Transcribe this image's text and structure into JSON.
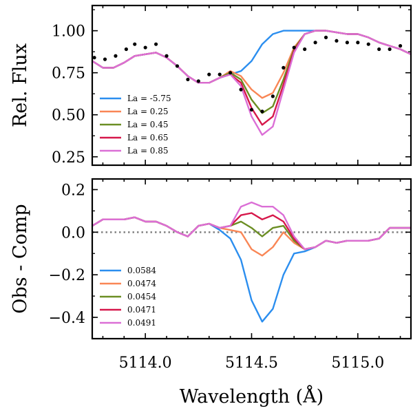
{
  "chart_data": [
    {
      "type": "line",
      "ylabel": "Rel. Flux",
      "xlim": [
        5113.75,
        5115.25
      ],
      "ylim": [
        0.2,
        1.15
      ],
      "yticks": [
        "0.25",
        "0.50",
        "0.75",
        "1.00"
      ],
      "legend_location": "lower-left",
      "x": [
        5113.75,
        5113.8,
        5113.85,
        5113.9,
        5113.95,
        5114.0,
        5114.05,
        5114.1,
        5114.15,
        5114.2,
        5114.25,
        5114.3,
        5114.35,
        5114.4,
        5114.45,
        5114.5,
        5114.55,
        5114.6,
        5114.65,
        5114.7,
        5114.75,
        5114.8,
        5114.85,
        5114.9,
        5114.95,
        5115.0,
        5115.05,
        5115.1,
        5115.15,
        5115.2,
        5115.25
      ],
      "series": [
        {
          "name": "La = -5.75",
          "color": "#2b8eef",
          "values": [
            0.82,
            0.78,
            0.78,
            0.81,
            0.85,
            0.86,
            0.87,
            0.84,
            0.79,
            0.73,
            0.69,
            0.69,
            0.72,
            0.74,
            0.76,
            0.82,
            0.92,
            0.98,
            1.0,
            1.0,
            1.0,
            1.0,
            1.0,
            0.99,
            0.98,
            0.98,
            0.96,
            0.93,
            0.91,
            0.89,
            0.86
          ]
        },
        {
          "name": "La = 0.25",
          "color": "#f98655",
          "values": [
            0.82,
            0.78,
            0.78,
            0.81,
            0.85,
            0.86,
            0.87,
            0.84,
            0.79,
            0.73,
            0.69,
            0.69,
            0.72,
            0.76,
            0.73,
            0.65,
            0.6,
            0.63,
            0.75,
            0.9,
            0.98,
            1.0,
            1.0,
            0.99,
            0.98,
            0.98,
            0.96,
            0.93,
            0.91,
            0.89,
            0.86
          ]
        },
        {
          "name": "La = 0.45",
          "color": "#6b8e23",
          "values": [
            0.82,
            0.78,
            0.78,
            0.81,
            0.85,
            0.86,
            0.87,
            0.84,
            0.79,
            0.73,
            0.69,
            0.69,
            0.72,
            0.75,
            0.71,
            0.59,
            0.51,
            0.55,
            0.71,
            0.89,
            0.98,
            1.0,
            1.0,
            0.99,
            0.98,
            0.98,
            0.96,
            0.93,
            0.91,
            0.89,
            0.86
          ]
        },
        {
          "name": "La = 0.65",
          "color": "#d6174a",
          "values": [
            0.82,
            0.78,
            0.78,
            0.81,
            0.85,
            0.86,
            0.87,
            0.84,
            0.79,
            0.73,
            0.69,
            0.69,
            0.72,
            0.74,
            0.69,
            0.54,
            0.44,
            0.49,
            0.68,
            0.88,
            0.98,
            1.0,
            1.0,
            0.99,
            0.98,
            0.98,
            0.96,
            0.93,
            0.91,
            0.89,
            0.86
          ]
        },
        {
          "name": "La = 0.85",
          "color": "#db6fd6",
          "values": [
            0.82,
            0.78,
            0.78,
            0.81,
            0.85,
            0.86,
            0.87,
            0.84,
            0.79,
            0.73,
            0.69,
            0.69,
            0.72,
            0.74,
            0.67,
            0.49,
            0.38,
            0.43,
            0.65,
            0.87,
            0.98,
            1.0,
            1.0,
            0.99,
            0.98,
            0.98,
            0.96,
            0.93,
            0.91,
            0.89,
            0.86
          ]
        }
      ],
      "observed": {
        "color": "#000000",
        "x": [
          5113.76,
          5113.81,
          5113.86,
          5113.91,
          5113.95,
          5114.0,
          5114.05,
          5114.1,
          5114.15,
          5114.2,
          5114.25,
          5114.3,
          5114.35,
          5114.4,
          5114.45,
          5114.5,
          5114.55,
          5114.6,
          5114.65,
          5114.7,
          5114.75,
          5114.8,
          5114.85,
          5114.9,
          5114.95,
          5115.0,
          5115.05,
          5115.1,
          5115.15,
          5115.2
        ],
        "y": [
          0.84,
          0.83,
          0.85,
          0.89,
          0.92,
          0.9,
          0.92,
          0.85,
          0.79,
          0.71,
          0.7,
          0.74,
          0.74,
          0.75,
          0.65,
          0.53,
          0.52,
          0.61,
          0.78,
          0.9,
          0.89,
          0.93,
          0.96,
          0.94,
          0.93,
          0.93,
          0.92,
          0.89,
          0.89,
          0.91
        ]
      }
    },
    {
      "type": "line",
      "xlabel": "Wavelength (Å)",
      "ylabel": "Obs - Comp",
      "xlim": [
        5113.75,
        5115.25
      ],
      "ylim": [
        -0.5,
        0.25
      ],
      "xticks": [
        "5114.0",
        "5114.5",
        "5115.0"
      ],
      "yticks": [
        "−0.4",
        "−0.2",
        "0.0",
        "0.2"
      ],
      "zero_line": 0,
      "legend_location": "lower-left",
      "x": [
        5113.75,
        5113.8,
        5113.85,
        5113.9,
        5113.95,
        5114.0,
        5114.05,
        5114.1,
        5114.15,
        5114.2,
        5114.25,
        5114.3,
        5114.35,
        5114.4,
        5114.45,
        5114.5,
        5114.55,
        5114.6,
        5114.65,
        5114.7,
        5114.75,
        5114.8,
        5114.85,
        5114.9,
        5114.95,
        5115.0,
        5115.05,
        5115.1,
        5115.15,
        5115.2,
        5115.25
      ],
      "series": [
        {
          "name": "0.0584",
          "color": "#2b8eef",
          "values": [
            0.03,
            0.06,
            0.06,
            0.06,
            0.07,
            0.05,
            0.05,
            0.03,
            0.0,
            -0.02,
            0.03,
            0.04,
            0.01,
            -0.03,
            -0.13,
            -0.32,
            -0.42,
            -0.36,
            -0.2,
            -0.1,
            -0.09,
            -0.07,
            -0.04,
            -0.05,
            -0.04,
            -0.04,
            -0.04,
            -0.03,
            0.02,
            0.02,
            0.02
          ]
        },
        {
          "name": "0.0474",
          "color": "#f98655",
          "values": [
            0.03,
            0.06,
            0.06,
            0.06,
            0.07,
            0.05,
            0.05,
            0.03,
            0.0,
            -0.02,
            0.03,
            0.04,
            0.02,
            0.01,
            0.0,
            -0.08,
            -0.11,
            -0.07,
            0.0,
            -0.05,
            -0.08,
            -0.07,
            -0.04,
            -0.05,
            -0.04,
            -0.04,
            -0.04,
            -0.03,
            0.02,
            0.02,
            0.02
          ]
        },
        {
          "name": "0.0454",
          "color": "#6b8e23",
          "values": [
            0.03,
            0.06,
            0.06,
            0.06,
            0.07,
            0.05,
            0.05,
            0.03,
            0.0,
            -0.02,
            0.03,
            0.04,
            0.02,
            0.03,
            0.05,
            0.02,
            -0.02,
            0.02,
            0.03,
            -0.04,
            -0.08,
            -0.07,
            -0.04,
            -0.05,
            -0.04,
            -0.04,
            -0.04,
            -0.03,
            0.02,
            0.02,
            0.02
          ]
        },
        {
          "name": "0.0471",
          "color": "#d6174a",
          "values": [
            0.03,
            0.06,
            0.06,
            0.06,
            0.07,
            0.05,
            0.05,
            0.03,
            0.0,
            -0.02,
            0.03,
            0.04,
            0.02,
            0.03,
            0.08,
            0.09,
            0.06,
            0.08,
            0.05,
            -0.03,
            -0.08,
            -0.07,
            -0.04,
            -0.05,
            -0.04,
            -0.04,
            -0.04,
            -0.03,
            0.02,
            0.02,
            0.02
          ]
        },
        {
          "name": "0.0491",
          "color": "#db6fd6",
          "values": [
            0.03,
            0.06,
            0.06,
            0.06,
            0.07,
            0.05,
            0.05,
            0.03,
            0.0,
            -0.02,
            0.03,
            0.04,
            0.02,
            0.03,
            0.12,
            0.14,
            0.12,
            0.12,
            0.08,
            -0.02,
            -0.08,
            -0.07,
            -0.04,
            -0.05,
            -0.04,
            -0.04,
            -0.04,
            -0.03,
            0.02,
            0.02,
            0.02
          ]
        }
      ]
    }
  ]
}
